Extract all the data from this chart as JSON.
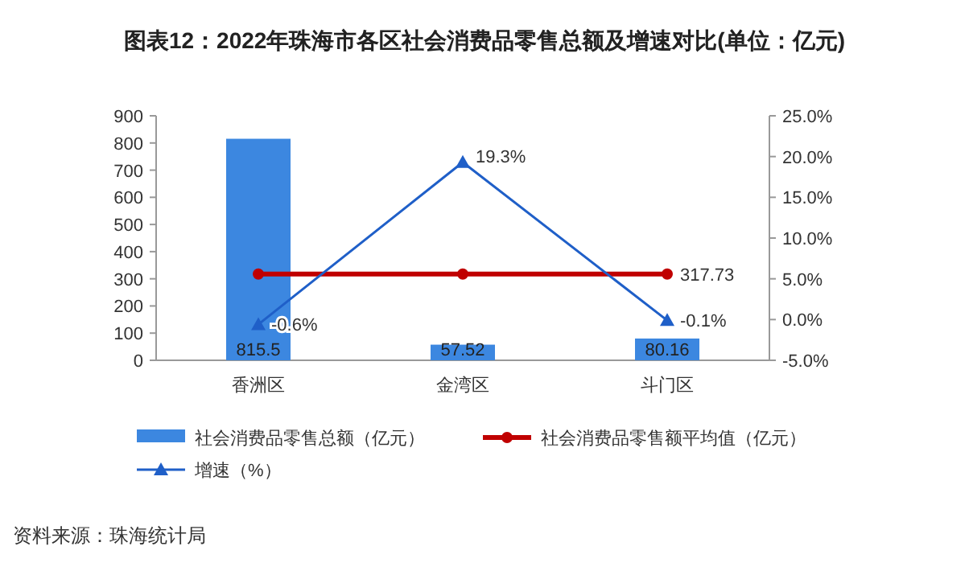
{
  "chart_data": {
    "type": "bar",
    "title": "图表12：2022年珠海市各区社会消费品零售总额及增速对比(单位：亿元)",
    "categories": [
      "香洲区",
      "金湾区",
      "斗门区"
    ],
    "series": [
      {
        "name": "社会消费品零售总额（亿元）",
        "color": "#3c87e0",
        "values": [
          815.5,
          57.52,
          80.16
        ],
        "value_labels": [
          "815.5",
          "57.52",
          "80.16"
        ]
      },
      {
        "name": "社会消费品零售额平均值（亿元）",
        "type": "line",
        "color": "#c00000",
        "marker": "circle",
        "values": [
          317.73,
          317.73,
          317.73
        ],
        "value_labels": [
          null,
          null,
          "317.73"
        ]
      },
      {
        "name": "增速（%）",
        "type": "line",
        "axis": "y2",
        "color": "#1f5fc8",
        "marker": "triangle",
        "values": [
          -0.6,
          19.3,
          -0.1
        ],
        "value_labels": [
          "-0.6%",
          "19.3%",
          "-0.1%"
        ]
      }
    ],
    "ylim": [
      0,
      900
    ],
    "yticks": [
      0,
      100,
      200,
      300,
      400,
      500,
      600,
      700,
      800,
      900
    ],
    "y2lim": [
      -5,
      25
    ],
    "y2ticks": [
      {
        "value": -5,
        "label": "-5.0%"
      },
      {
        "value": 0,
        "label": "0.0%"
      },
      {
        "value": 5,
        "label": "5.0%"
      },
      {
        "value": 10,
        "label": "10.0%"
      },
      {
        "value": 15,
        "label": "15.0%"
      },
      {
        "value": 20,
        "label": "20.0%"
      },
      {
        "value": 25,
        "label": "25.0%"
      }
    ],
    "grid": false,
    "legend": "bottom",
    "line_style": "solid",
    "annotations": [
      "资料来源：珠海统计局"
    ]
  }
}
